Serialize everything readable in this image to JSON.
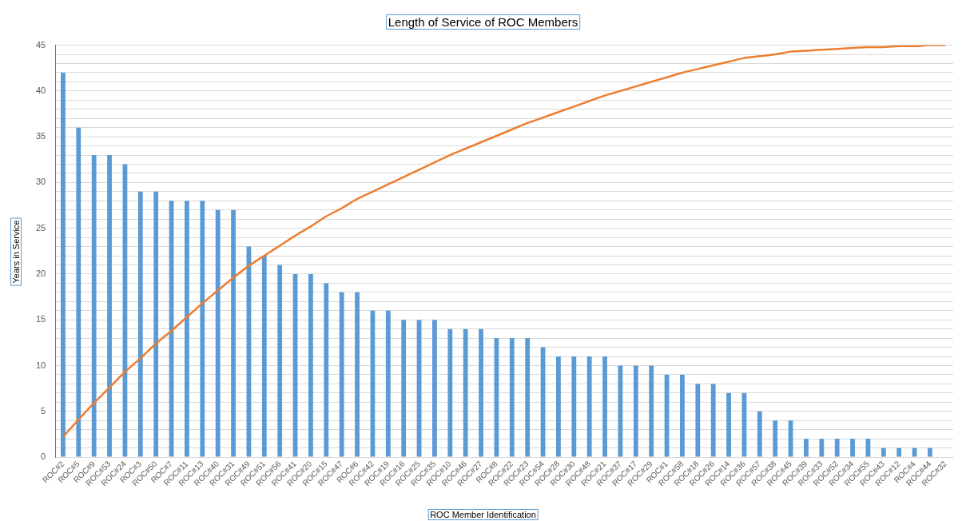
{
  "chart_data": {
    "type": "bar",
    "title": "Length of Service of ROC Members",
    "xlabel": "ROC Member Identification",
    "ylabel": "Years in Service",
    "categories": [
      "ROC#2",
      "ROC#5",
      "ROC#9",
      "ROC#53",
      "ROC#24",
      "ROC#3",
      "ROC#50",
      "ROC#7",
      "ROC#11",
      "ROC#13",
      "ROC#40",
      "ROC#31",
      "ROC#49",
      "ROC#51",
      "ROC#56",
      "ROC#41",
      "ROC#20",
      "ROC#15",
      "ROC#47",
      "ROC#6",
      "ROC#42",
      "ROC#19",
      "ROC#16",
      "ROC#25",
      "ROC#35",
      "ROC#10",
      "ROC#46",
      "ROC#27",
      "ROC#8",
      "ROC#22",
      "ROC#23",
      "ROC#54",
      "ROC#28",
      "ROC#30",
      "ROC#48",
      "ROC#21",
      "ROC#37",
      "ROC#17",
      "ROC#29",
      "ROC#1",
      "ROC#58",
      "ROC#18",
      "ROC#26",
      "ROC#14",
      "ROC#36",
      "ROC#57",
      "ROC#38",
      "ROC#45",
      "ROC#39",
      "ROC#33",
      "ROC#52",
      "ROC#34",
      "ROC#55",
      "ROC#43",
      "ROC#12",
      "ROC#4",
      "ROC#44",
      "ROC#32"
    ],
    "series": [
      {
        "color": "#5b9bd5",
        "values": [
          42,
          36,
          33,
          33,
          32,
          29,
          29,
          28,
          28,
          28,
          27,
          27,
          23,
          22,
          21,
          20,
          20,
          19,
          18,
          18,
          16,
          16,
          15,
          15,
          15,
          14,
          14,
          14,
          13,
          13,
          13,
          12,
          11,
          11,
          11,
          11,
          10,
          10,
          10,
          9,
          9,
          8,
          8,
          7,
          7,
          5,
          4,
          4,
          2,
          2,
          2,
          2,
          2,
          1,
          1,
          1,
          1,
          0
        ]
      },
      {
        "type": "line",
        "color": "#ed7d31",
        "values": [
          2.2,
          4.1,
          5.9,
          7.6,
          9.3,
          10.8,
          12.4,
          13.8,
          15.3,
          16.8,
          18.2,
          19.6,
          20.9,
          22.0,
          23.1,
          24.2,
          25.2,
          26.3,
          27.2,
          28.2,
          29.0,
          29.8,
          30.6,
          31.4,
          32.2,
          33.0,
          33.7,
          34.4,
          35.1,
          35.8,
          36.5,
          37.1,
          37.7,
          38.3,
          38.9,
          39.5,
          40.0,
          40.5,
          41.0,
          41.5,
          42.0,
          42.4,
          42.8,
          43.2,
          43.6,
          43.8,
          44.0,
          44.3,
          44.4,
          44.5,
          44.6,
          44.7,
          44.8,
          44.8,
          44.9,
          44.9,
          45.0,
          45.0
        ]
      }
    ],
    "ylim": [
      0,
      45
    ],
    "yticks": [
      0,
      {
        "value": 1,
        "label": null
      },
      {
        "value": 2,
        "label": null
      },
      {
        "value": 3,
        "label": null
      },
      {
        "value": 4,
        "label": null
      },
      5,
      {
        "value": 6,
        "label": null
      },
      {
        "value": 7,
        "label": null
      },
      {
        "value": 8,
        "label": null
      },
      {
        "value": 9,
        "label": null
      },
      10,
      {
        "value": 11,
        "label": null
      },
      {
        "value": 12,
        "label": null
      },
      {
        "value": 13,
        "label": null
      },
      {
        "value": 14,
        "label": null
      },
      15,
      {
        "value": 16,
        "label": null
      },
      {
        "value": 17,
        "label": null
      },
      {
        "value": 18,
        "label": null
      },
      {
        "value": 19,
        "label": null
      },
      20,
      {
        "value": 21,
        "label": null
      },
      {
        "value": 22,
        "label": null
      },
      {
        "value": 23,
        "label": null
      },
      {
        "value": 24,
        "label": null
      },
      25,
      {
        "value": 26,
        "label": null
      },
      {
        "value": 27,
        "label": null
      },
      {
        "value": 28,
        "label": null
      },
      {
        "value": 29,
        "label": null
      },
      30,
      {
        "value": 31,
        "label": null
      },
      {
        "value": 32,
        "label": null
      },
      {
        "value": 33,
        "label": null
      },
      {
        "value": 34,
        "label": null
      },
      35,
      {
        "value": 36,
        "label": null
      },
      {
        "value": 37,
        "label": null
      },
      {
        "value": 38,
        "label": null
      },
      {
        "value": 39,
        "label": null
      },
      40,
      {
        "value": 41,
        "label": null
      },
      {
        "value": 42,
        "label": null
      },
      {
        "value": 43,
        "label": null
      },
      {
        "value": 44,
        "label": null
      },
      45
    ],
    "grid": "y"
  }
}
